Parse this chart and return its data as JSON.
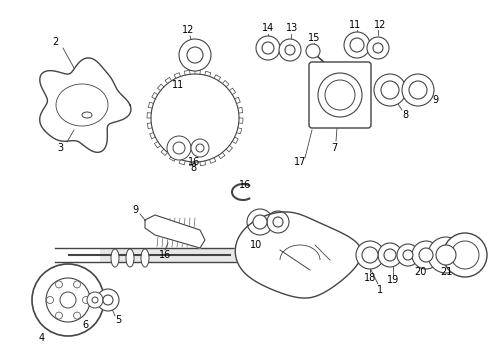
{
  "background_color": "#ffffff",
  "line_color": "#444444",
  "text_color": "#000000",
  "font_size": 7.0,
  "dpi": 100,
  "figw": 4.9,
  "figh": 3.6
}
